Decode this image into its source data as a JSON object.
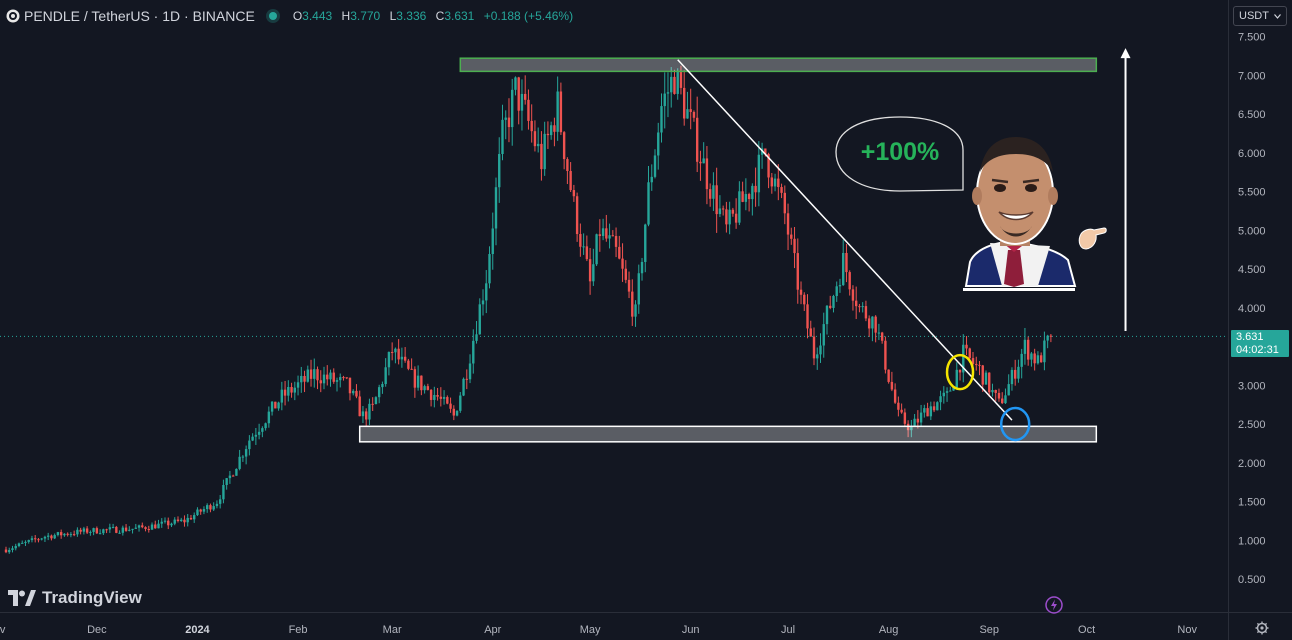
{
  "header": {
    "symbol": "PENDLE / TetherUS · 1D · BINANCE",
    "o_label": "O",
    "o": "3.443",
    "h_label": "H",
    "h": "3.770",
    "l_label": "L",
    "l": "3.336",
    "c_label": "C",
    "c": "3.631",
    "change": "+0.188 (+5.46%)"
  },
  "currency_selector": {
    "value": "USDT",
    "icon": "chevron-down-icon"
  },
  "logo_text": "TradingView",
  "price_tag": {
    "price": "3.631",
    "countdown": "04:02:31"
  },
  "annotation": {
    "gain_text": "+100%"
  },
  "colors": {
    "up": "#26a69a",
    "down": "#ef5350",
    "background": "#131722",
    "resistance_zone": "#4caf50",
    "support_zone": "#ffffff",
    "yellow_marker": "#f5e400",
    "blue_marker": "#2196f3"
  },
  "chart_data": {
    "type": "candlestick",
    "y_ticks": [
      "7.500",
      "7.000",
      "6.500",
      "6.000",
      "5.500",
      "5.000",
      "4.500",
      "4.000",
      "3.500",
      "3.000",
      "2.500",
      "2.000",
      "1.500",
      "1.000",
      "0.500"
    ],
    "ylim": [
      0.3,
      7.65
    ],
    "x_ticks": [
      {
        "label": "ov",
        "bold": false,
        "t": -2
      },
      {
        "label": "Dec",
        "bold": false,
        "t": 28
      },
      {
        "label": "2024",
        "bold": true,
        "t": 59
      },
      {
        "label": "Feb",
        "bold": false,
        "t": 90
      },
      {
        "label": "Mar",
        "bold": false,
        "t": 119
      },
      {
        "label": "Apr",
        "bold": false,
        "t": 150
      },
      {
        "label": "May",
        "bold": false,
        "t": 180
      },
      {
        "label": "Jun",
        "bold": false,
        "t": 211
      },
      {
        "label": "Jul",
        "bold": false,
        "t": 241
      },
      {
        "label": "Aug",
        "bold": false,
        "t": 272
      },
      {
        "label": "Sep",
        "bold": false,
        "t": 303
      },
      {
        "label": "Oct",
        "bold": false,
        "t": 333
      },
      {
        "label": "Nov",
        "bold": false,
        "t": 364
      }
    ],
    "trend_anchors": [
      [
        0,
        0.88
      ],
      [
        12,
        1.05
      ],
      [
        25,
        1.12
      ],
      [
        40,
        1.15
      ],
      [
        55,
        1.25
      ],
      [
        65,
        1.5
      ],
      [
        75,
        2.3
      ],
      [
        85,
        2.85
      ],
      [
        95,
        3.15
      ],
      [
        105,
        3.0
      ],
      [
        110,
        2.6
      ],
      [
        113,
        2.7
      ],
      [
        119,
        3.45
      ],
      [
        125,
        3.1
      ],
      [
        133,
        2.85
      ],
      [
        138,
        2.6
      ],
      [
        142,
        3.2
      ],
      [
        148,
        4.4
      ],
      [
        153,
        6.2
      ],
      [
        157,
        6.8
      ],
      [
        160,
        6.5
      ],
      [
        165,
        5.9
      ],
      [
        170,
        6.6
      ],
      [
        175,
        5.3
      ],
      [
        178,
        4.7
      ],
      [
        180,
        4.3
      ],
      [
        183,
        5.0
      ],
      [
        188,
        4.7
      ],
      [
        194,
        3.9
      ],
      [
        198,
        5.5
      ],
      [
        202,
        6.6
      ],
      [
        206,
        7.0
      ],
      [
        210,
        6.5
      ],
      [
        216,
        5.7
      ],
      [
        222,
        5.0
      ],
      [
        230,
        5.6
      ],
      [
        234,
        6.0
      ],
      [
        240,
        5.2
      ],
      [
        245,
        4.1
      ],
      [
        249,
        3.4
      ],
      [
        253,
        3.9
      ],
      [
        258,
        4.6
      ],
      [
        263,
        4.0
      ],
      [
        268,
        3.8
      ],
      [
        275,
        2.6
      ],
      [
        279,
        2.45
      ],
      [
        284,
        2.7
      ],
      [
        290,
        2.85
      ],
      [
        295,
        3.4
      ],
      [
        300,
        3.2
      ],
      [
        306,
        2.75
      ],
      [
        309,
        3.0
      ],
      [
        314,
        3.5
      ],
      [
        318,
        3.3
      ],
      [
        322,
        3.631
      ]
    ],
    "last_close": 3.631,
    "resistance_zone": {
      "low": 7.05,
      "high": 7.22,
      "t_start": 140,
      "t_end": 336
    },
    "support_zone": {
      "low": 2.27,
      "high": 2.47,
      "t_start": 109,
      "t_end": 336
    },
    "trendline": [
      [
        207,
        7.2
      ],
      [
        310,
        2.55
      ]
    ],
    "arrow": {
      "t": 345,
      "from": 3.7,
      "to": 7.35
    }
  }
}
